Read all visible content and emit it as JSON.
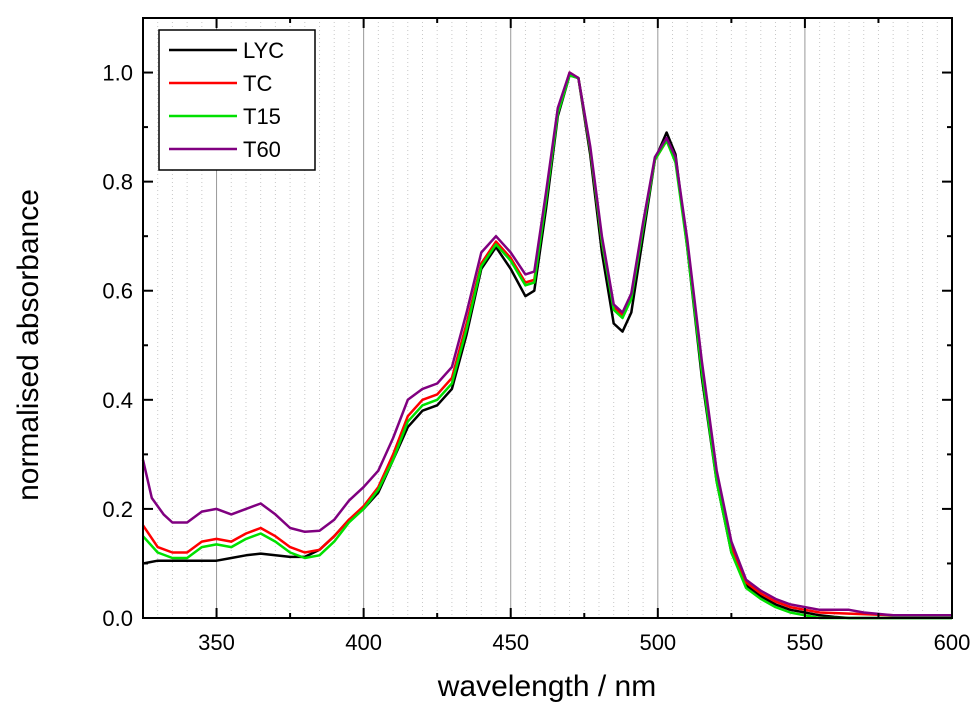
{
  "chart_data": {
    "type": "line",
    "title": "",
    "xlabel": "wavelength / nm",
    "ylabel": "normalised absorbance",
    "xlim": [
      325,
      600
    ],
    "ylim": [
      0.0,
      1.1
    ],
    "x_ticks": [
      350,
      400,
      450,
      500,
      550,
      600
    ],
    "x_tick_labels": [
      "350",
      "400",
      "450",
      "500",
      "550",
      "600"
    ],
    "y_ticks": [
      0.0,
      0.2,
      0.4,
      0.6,
      0.8,
      1.0
    ],
    "y_tick_labels": [
      "0.0",
      "0.2",
      "0.4",
      "0.6",
      "0.8",
      "1.0"
    ],
    "x_minor_step": 5,
    "grid": "vertical lines",
    "legend_position": "top-left",
    "series": [
      {
        "name": "LYC",
        "color": "#000000",
        "points": [
          [
            325,
            0.1
          ],
          [
            330,
            0.105
          ],
          [
            335,
            0.105
          ],
          [
            340,
            0.105
          ],
          [
            345,
            0.105
          ],
          [
            350,
            0.105
          ],
          [
            355,
            0.11
          ],
          [
            360,
            0.115
          ],
          [
            365,
            0.118
          ],
          [
            370,
            0.115
          ],
          [
            375,
            0.112
          ],
          [
            380,
            0.112
          ],
          [
            385,
            0.125
          ],
          [
            390,
            0.15
          ],
          [
            395,
            0.18
          ],
          [
            400,
            0.2
          ],
          [
            405,
            0.23
          ],
          [
            410,
            0.29
          ],
          [
            415,
            0.35
          ],
          [
            420,
            0.38
          ],
          [
            425,
            0.39
          ],
          [
            430,
            0.42
          ],
          [
            435,
            0.52
          ],
          [
            440,
            0.64
          ],
          [
            445,
            0.68
          ],
          [
            450,
            0.64
          ],
          [
            455,
            0.59
          ],
          [
            458,
            0.6
          ],
          [
            462,
            0.75
          ],
          [
            466,
            0.92
          ],
          [
            470,
            0.995
          ],
          [
            473,
            0.99
          ],
          [
            477,
            0.85
          ],
          [
            481,
            0.67
          ],
          [
            485,
            0.54
          ],
          [
            488,
            0.525
          ],
          [
            491,
            0.56
          ],
          [
            495,
            0.7
          ],
          [
            499,
            0.84
          ],
          [
            503,
            0.89
          ],
          [
            506,
            0.85
          ],
          [
            510,
            0.68
          ],
          [
            515,
            0.44
          ],
          [
            520,
            0.25
          ],
          [
            525,
            0.12
          ],
          [
            530,
            0.06
          ],
          [
            535,
            0.04
          ],
          [
            540,
            0.025
          ],
          [
            545,
            0.015
          ],
          [
            550,
            0.01
          ],
          [
            555,
            0.005
          ],
          [
            560,
            0.002
          ],
          [
            565,
            0.0
          ],
          [
            570,
            0.0
          ],
          [
            580,
            0.0
          ],
          [
            590,
            0.0
          ],
          [
            600,
            0.0
          ]
        ]
      },
      {
        "name": "TC",
        "color": "#ff0000",
        "points": [
          [
            325,
            0.17
          ],
          [
            330,
            0.13
          ],
          [
            335,
            0.12
          ],
          [
            340,
            0.12
          ],
          [
            345,
            0.14
          ],
          [
            350,
            0.145
          ],
          [
            355,
            0.14
          ],
          [
            360,
            0.155
          ],
          [
            365,
            0.165
          ],
          [
            370,
            0.15
          ],
          [
            375,
            0.13
          ],
          [
            380,
            0.12
          ],
          [
            385,
            0.125
          ],
          [
            390,
            0.15
          ],
          [
            395,
            0.18
          ],
          [
            400,
            0.205
          ],
          [
            405,
            0.24
          ],
          [
            410,
            0.3
          ],
          [
            415,
            0.37
          ],
          [
            420,
            0.4
          ],
          [
            425,
            0.41
          ],
          [
            430,
            0.44
          ],
          [
            435,
            0.54
          ],
          [
            440,
            0.65
          ],
          [
            445,
            0.69
          ],
          [
            450,
            0.66
          ],
          [
            455,
            0.615
          ],
          [
            458,
            0.62
          ],
          [
            462,
            0.77
          ],
          [
            466,
            0.93
          ],
          [
            470,
            1.0
          ],
          [
            473,
            0.99
          ],
          [
            477,
            0.86
          ],
          [
            481,
            0.69
          ],
          [
            485,
            0.57
          ],
          [
            488,
            0.555
          ],
          [
            491,
            0.59
          ],
          [
            495,
            0.72
          ],
          [
            499,
            0.84
          ],
          [
            503,
            0.875
          ],
          [
            506,
            0.84
          ],
          [
            510,
            0.69
          ],
          [
            515,
            0.46
          ],
          [
            520,
            0.26
          ],
          [
            525,
            0.13
          ],
          [
            530,
            0.065
          ],
          [
            535,
            0.045
          ],
          [
            540,
            0.03
          ],
          [
            545,
            0.02
          ],
          [
            550,
            0.015
          ],
          [
            555,
            0.01
          ],
          [
            565,
            0.008
          ],
          [
            580,
            0.005
          ],
          [
            600,
            0.005
          ]
        ]
      },
      {
        "name": "T15",
        "color": "#00e000",
        "points": [
          [
            325,
            0.15
          ],
          [
            330,
            0.12
          ],
          [
            335,
            0.11
          ],
          [
            340,
            0.11
          ],
          [
            345,
            0.13
          ],
          [
            350,
            0.135
          ],
          [
            355,
            0.13
          ],
          [
            360,
            0.145
          ],
          [
            365,
            0.155
          ],
          [
            370,
            0.14
          ],
          [
            375,
            0.12
          ],
          [
            380,
            0.11
          ],
          [
            385,
            0.115
          ],
          [
            390,
            0.14
          ],
          [
            395,
            0.175
          ],
          [
            400,
            0.2
          ],
          [
            405,
            0.235
          ],
          [
            410,
            0.29
          ],
          [
            415,
            0.36
          ],
          [
            420,
            0.39
          ],
          [
            425,
            0.4
          ],
          [
            430,
            0.43
          ],
          [
            435,
            0.53
          ],
          [
            440,
            0.645
          ],
          [
            445,
            0.685
          ],
          [
            450,
            0.655
          ],
          [
            455,
            0.61
          ],
          [
            458,
            0.615
          ],
          [
            462,
            0.765
          ],
          [
            466,
            0.925
          ],
          [
            470,
            0.995
          ],
          [
            473,
            0.99
          ],
          [
            477,
            0.86
          ],
          [
            481,
            0.69
          ],
          [
            485,
            0.565
          ],
          [
            488,
            0.55
          ],
          [
            491,
            0.585
          ],
          [
            495,
            0.715
          ],
          [
            499,
            0.84
          ],
          [
            503,
            0.875
          ],
          [
            506,
            0.835
          ],
          [
            510,
            0.68
          ],
          [
            515,
            0.45
          ],
          [
            520,
            0.25
          ],
          [
            525,
            0.12
          ],
          [
            530,
            0.055
          ],
          [
            535,
            0.035
          ],
          [
            540,
            0.02
          ],
          [
            545,
            0.01
          ],
          [
            550,
            0.005
          ],
          [
            555,
            0.0
          ],
          [
            565,
            0.0
          ],
          [
            580,
            0.0
          ],
          [
            600,
            0.0
          ]
        ]
      },
      {
        "name": "T60",
        "color": "#800080",
        "points": [
          [
            325,
            0.29
          ],
          [
            328,
            0.22
          ],
          [
            332,
            0.19
          ],
          [
            335,
            0.175
          ],
          [
            340,
            0.175
          ],
          [
            345,
            0.195
          ],
          [
            350,
            0.2
          ],
          [
            355,
            0.19
          ],
          [
            360,
            0.2
          ],
          [
            365,
            0.21
          ],
          [
            370,
            0.19
          ],
          [
            375,
            0.165
          ],
          [
            380,
            0.158
          ],
          [
            385,
            0.16
          ],
          [
            390,
            0.18
          ],
          [
            395,
            0.215
          ],
          [
            400,
            0.24
          ],
          [
            405,
            0.27
          ],
          [
            410,
            0.33
          ],
          [
            415,
            0.4
          ],
          [
            420,
            0.42
          ],
          [
            425,
            0.43
          ],
          [
            430,
            0.46
          ],
          [
            435,
            0.56
          ],
          [
            440,
            0.67
          ],
          [
            445,
            0.7
          ],
          [
            450,
            0.67
          ],
          [
            455,
            0.63
          ],
          [
            458,
            0.635
          ],
          [
            462,
            0.78
          ],
          [
            466,
            0.935
          ],
          [
            470,
            1.0
          ],
          [
            473,
            0.99
          ],
          [
            477,
            0.865
          ],
          [
            481,
            0.7
          ],
          [
            485,
            0.575
          ],
          [
            488,
            0.56
          ],
          [
            491,
            0.595
          ],
          [
            495,
            0.725
          ],
          [
            499,
            0.845
          ],
          [
            503,
            0.88
          ],
          [
            506,
            0.845
          ],
          [
            510,
            0.695
          ],
          [
            515,
            0.47
          ],
          [
            520,
            0.27
          ],
          [
            525,
            0.14
          ],
          [
            530,
            0.07
          ],
          [
            535,
            0.05
          ],
          [
            540,
            0.035
          ],
          [
            545,
            0.025
          ],
          [
            550,
            0.02
          ],
          [
            555,
            0.015
          ],
          [
            565,
            0.015
          ],
          [
            570,
            0.01
          ],
          [
            580,
            0.005
          ],
          [
            600,
            0.005
          ]
        ]
      }
    ]
  }
}
